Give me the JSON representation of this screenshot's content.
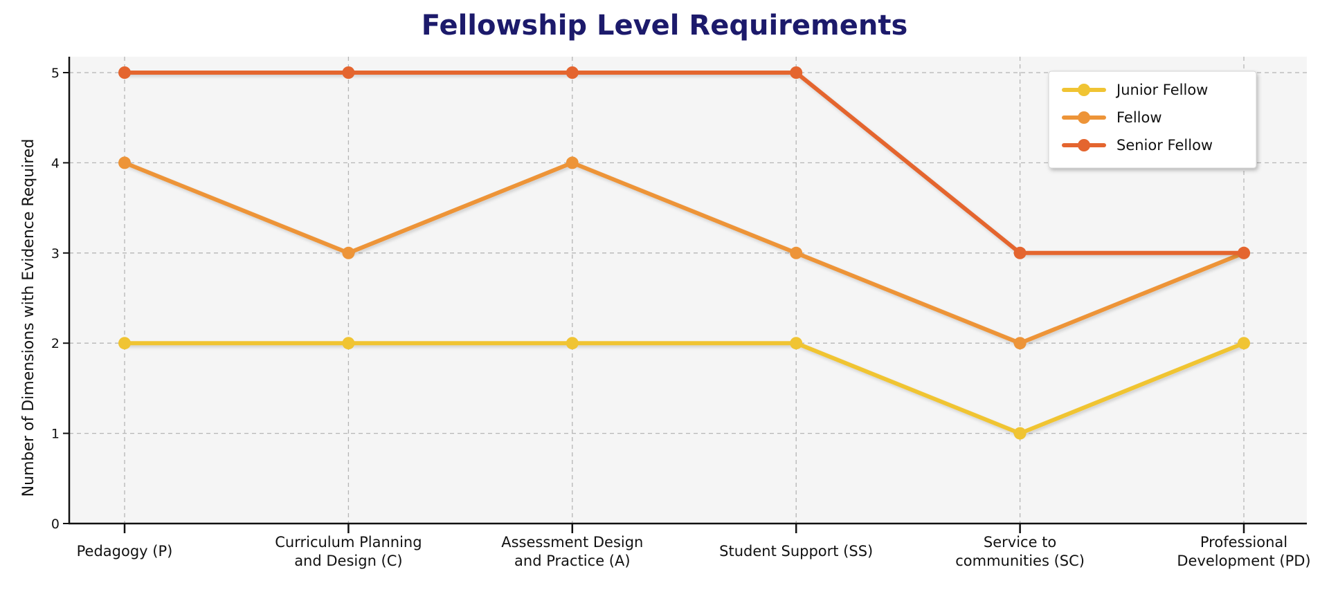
{
  "chart_data": {
    "type": "line",
    "title": "Fellowship Level Requirements",
    "xlabel": "",
    "ylabel": "Number of Dimensions with Evidence Required",
    "categories": [
      [
        "Pedagogy (P)"
      ],
      [
        "Curriculum Planning",
        "and Design (C)"
      ],
      [
        "Assessment Design",
        "and Practice (A)"
      ],
      [
        "Student Support (SS)"
      ],
      [
        "Service to",
        "communities (SC)"
      ],
      [
        "Professional",
        "Development (PD)"
      ]
    ],
    "yticks": [
      0,
      1,
      2,
      3,
      4,
      5
    ],
    "ylim": [
      0,
      5.3
    ],
    "grid": true,
    "legend_position": "top-right",
    "series": [
      {
        "name": "Junior Fellow",
        "color": "#f0c433",
        "values": [
          2,
          2,
          2,
          2,
          1,
          2
        ]
      },
      {
        "name": "Fellow",
        "color": "#ed9438",
        "values": [
          4,
          3,
          4,
          3,
          2,
          3
        ]
      },
      {
        "name": "Senior Fellow",
        "color": "#e4652f",
        "values": [
          5,
          5,
          5,
          5,
          3,
          3
        ]
      }
    ],
    "plot_background": "#f5f5f5",
    "title_color": "#1c1a6b"
  }
}
